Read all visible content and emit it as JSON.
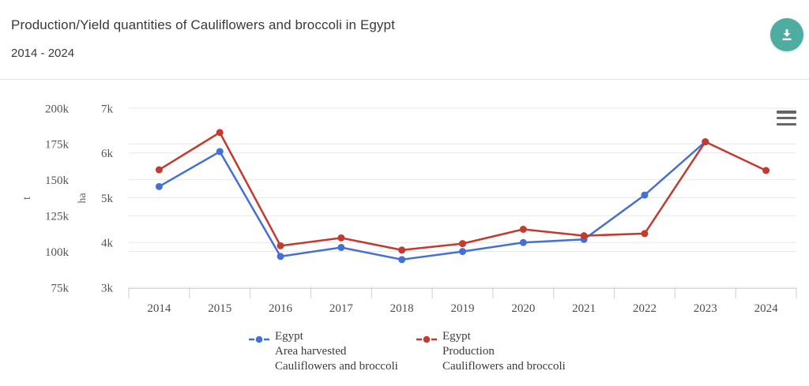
{
  "header": {
    "title": "Production/Yield quantities of Cauliflowers and broccoli in Egypt",
    "subtitle": "2014 - 2024",
    "download_button": {
      "icon": "download-icon",
      "color": "#4dada0"
    }
  },
  "chart_menu": {
    "icon": "hamburger-menu-icon",
    "color": "#666666"
  },
  "chart_data": {
    "type": "line",
    "title": "Production/Yield quantities of Cauliflowers and broccoli in Egypt",
    "subtitle": "2014 - 2024",
    "grid": true,
    "legend_position": "bottom",
    "categories": [
      "2014",
      "2015",
      "2016",
      "2017",
      "2018",
      "2019",
      "2020",
      "2021",
      "2022",
      "2023",
      "2024"
    ],
    "series": [
      {
        "name": "Egypt Area harvested Cauliflowers and broccoli",
        "legend_lines": [
          "Egypt",
          "Area harvested",
          "Cauliflowers and broccoli"
        ],
        "color": "#4470d5",
        "axis": "ha",
        "values": [
          5250,
          6030,
          3690,
          3890,
          3620,
          3800,
          4000,
          4070,
          5060,
          6250,
          null
        ]
      },
      {
        "name": "Egypt Production Cauliflowers and broccoli",
        "legend_lines": [
          "Egypt",
          "Production",
          "Cauliflowers and broccoli"
        ],
        "color": "#c33a2f",
        "axis": "t",
        "values": [
          157000,
          183000,
          104000,
          109500,
          101000,
          105500,
          115500,
          111000,
          112500,
          176500,
          156500
        ]
      }
    ],
    "axes": {
      "t": {
        "unit": "t",
        "min": 75000,
        "max": 200000,
        "tick_values": [
          200000,
          175000,
          150000,
          125000,
          100000,
          75000
        ],
        "tick_labels": [
          "200k",
          "175k",
          "150k",
          "125k",
          "100k",
          "75k"
        ]
      },
      "ha": {
        "unit": "ha",
        "min": 3000,
        "max": 7000,
        "tick_values": [
          7000,
          6000,
          5000,
          4000,
          3000
        ],
        "tick_labels": [
          "7k",
          "6k",
          "5k",
          "4k",
          "3k"
        ]
      }
    }
  }
}
